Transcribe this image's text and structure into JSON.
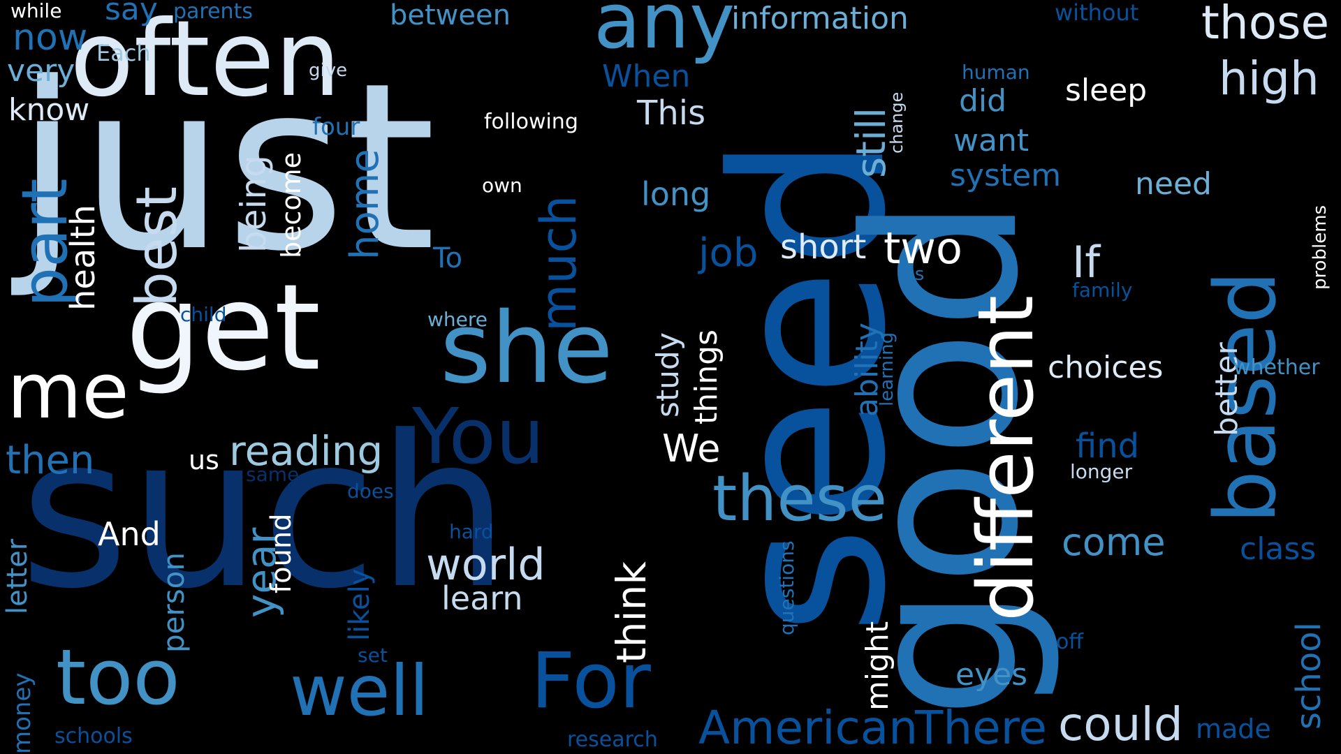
{
  "palette": {
    "c1": "#08306b",
    "c2": "#08519c",
    "c3": "#2171b5",
    "c4": "#4292c6",
    "c5": "#6baed6",
    "c6": "#9ecae1",
    "c7": "#c6dbef",
    "c8": "#deebf7",
    "c9": "#ffffff"
  },
  "words": [
    "seed",
    "good",
    "just",
    "such",
    "often",
    "get",
    "me",
    "she",
    "based",
    "different",
    "any",
    "You",
    "too",
    "well",
    "For",
    "American",
    "There",
    "could",
    "these",
    "those",
    "best",
    "much",
    "part",
    "high",
    "If",
    "sleep",
    "world",
    "reading",
    "think",
    "still",
    "job",
    "short",
    "two",
    "year",
    "home",
    "health",
    "being",
    "then",
    "now",
    "say",
    "between",
    "information",
    "without",
    "know",
    "very",
    "Each",
    "while",
    "parents",
    "give",
    "following",
    "four",
    "When",
    "This",
    "human",
    "did",
    "want",
    "system",
    "need",
    "change",
    "own",
    "long",
    "become",
    "To",
    "As",
    "family",
    "child",
    "where",
    "us",
    "same",
    "does",
    "found",
    "person",
    "letter",
    "likely",
    "And",
    "learn",
    "hard",
    "study",
    "things",
    "ability",
    "learning",
    "choices",
    "better",
    "whether",
    "find",
    "longer",
    "come",
    "class",
    "We",
    "eyes",
    "might",
    "questions",
    "off",
    "school",
    "made",
    "money",
    "schools",
    "research",
    "set",
    "problems"
  ]
}
